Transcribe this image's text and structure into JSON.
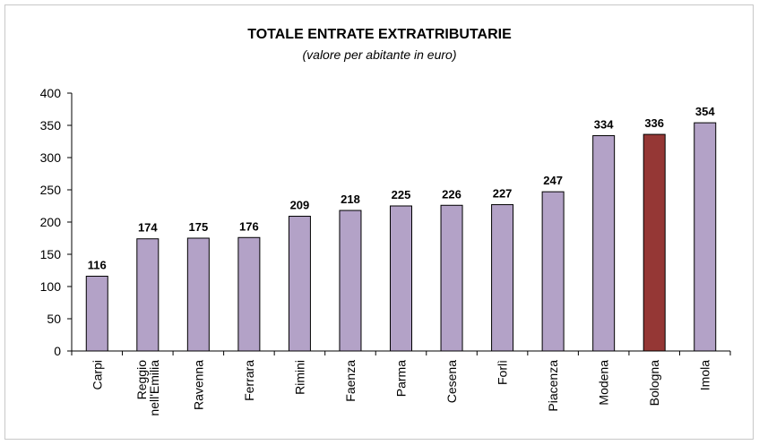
{
  "chart_data": {
    "type": "bar",
    "title": "TOTALE ENTRATE EXTRATRIBUTARIE",
    "subtitle": "(valore per abitante in euro)",
    "categories": [
      "Carpi",
      "Reggio nell'Emilia",
      "Ravenna",
      "Ferrara",
      "Rimini",
      "Faenza",
      "Parma",
      "Cesena",
      "Forlì",
      "Piacenza",
      "Modena",
      "Bologna",
      "Imola"
    ],
    "category_lines": [
      [
        "Carpi"
      ],
      [
        "Reggio",
        "nell'Emilia"
      ],
      [
        "Ravenna"
      ],
      [
        "Ferrara"
      ],
      [
        "Rimini"
      ],
      [
        "Faenza"
      ],
      [
        "Parma"
      ],
      [
        "Cesena"
      ],
      [
        "Forlì"
      ],
      [
        "Piacenza"
      ],
      [
        "Modena"
      ],
      [
        "Bologna"
      ],
      [
        "Imola"
      ]
    ],
    "values": [
      116,
      174,
      175,
      176,
      209,
      218,
      225,
      226,
      227,
      247,
      334,
      336,
      354
    ],
    "ylim": [
      0,
      400
    ],
    "yticks": [
      0,
      50,
      100,
      150,
      200,
      250,
      300,
      350,
      400
    ],
    "xlabel": "",
    "ylabel": "",
    "grid": false,
    "legend": "none",
    "colors": {
      "bar": "#B3A2C7",
      "highlight": "#953735",
      "bar_outline": "#000000",
      "axis": "#000000"
    },
    "highlight_category": "Bologna"
  }
}
